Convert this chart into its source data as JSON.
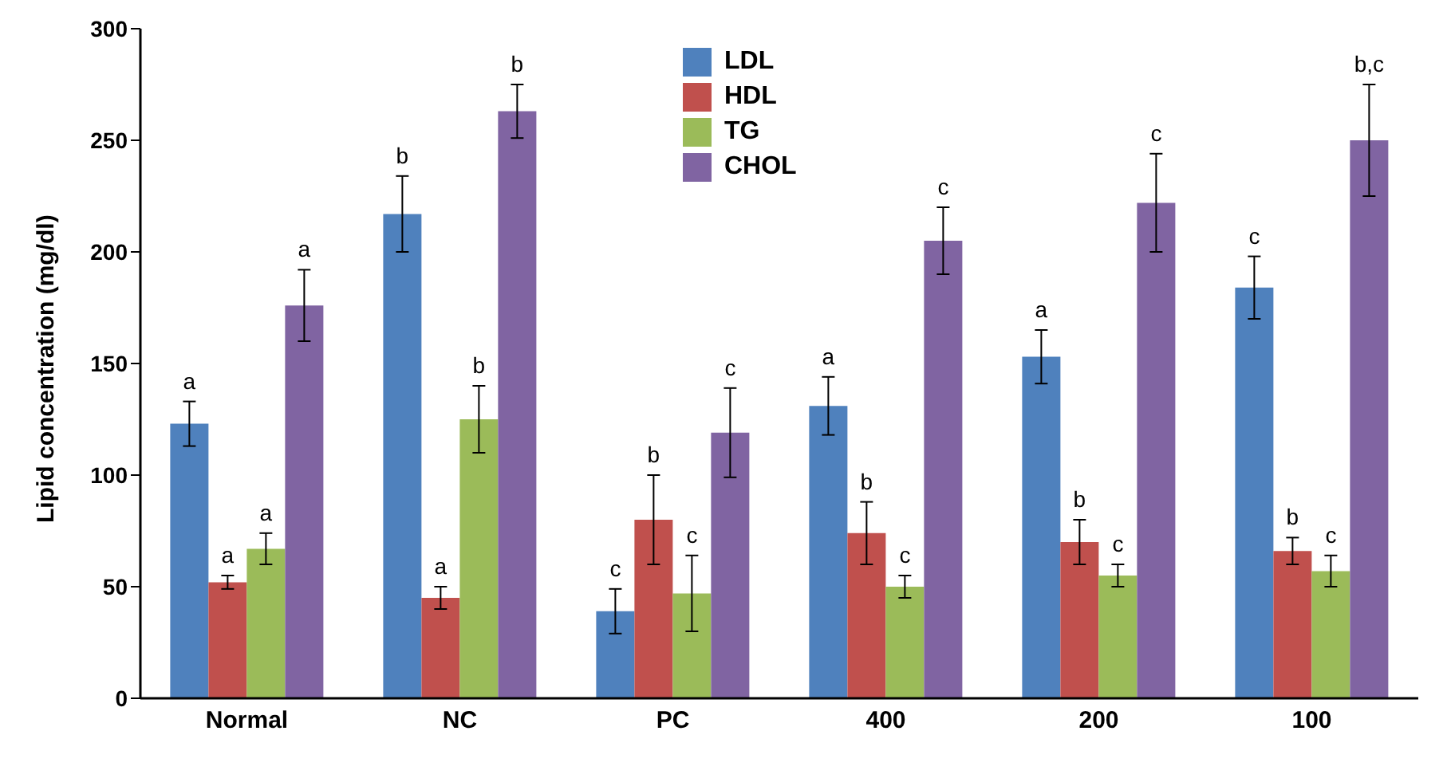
{
  "chart_data": {
    "type": "bar",
    "ylabel": "Lipid concentration (mg/dl)",
    "categories": [
      "Normal",
      "NC",
      "PC",
      "400",
      "200",
      "100"
    ],
    "series": [
      {
        "name": "LDL",
        "color": "#4f81bd",
        "values": [
          123,
          217,
          39,
          131,
          153,
          184
        ],
        "errors": [
          10,
          17,
          10,
          13,
          12,
          14
        ],
        "value_labels": [
          "a",
          "b",
          "c",
          "a",
          "a",
          "c"
        ]
      },
      {
        "name": "HDL",
        "color": "#c0504d",
        "values": [
          52,
          45,
          80,
          74,
          70,
          66
        ],
        "errors": [
          3,
          5,
          20,
          14,
          10,
          6
        ],
        "value_labels": [
          "a",
          "a",
          "b",
          "b",
          "b",
          "b"
        ]
      },
      {
        "name": "TG",
        "color": "#9bbb59",
        "values": [
          67,
          125,
          47,
          50,
          55,
          57
        ],
        "errors": [
          7,
          15,
          17,
          5,
          5,
          7
        ],
        "value_labels": [
          "a",
          "b",
          "c",
          "c",
          "c",
          "c"
        ]
      },
      {
        "name": "CHOL",
        "color": "#8064a2",
        "values": [
          176,
          263,
          119,
          205,
          222,
          250
        ],
        "errors": [
          16,
          12,
          20,
          15,
          22,
          25
        ],
        "value_labels": [
          "a",
          "b",
          "c",
          "c",
          "c",
          "b,c"
        ]
      }
    ],
    "ylim": [
      0,
      300
    ],
    "yticks": [
      0,
      50,
      100,
      150,
      200,
      250,
      300
    ],
    "grid": false,
    "legend": "top"
  }
}
